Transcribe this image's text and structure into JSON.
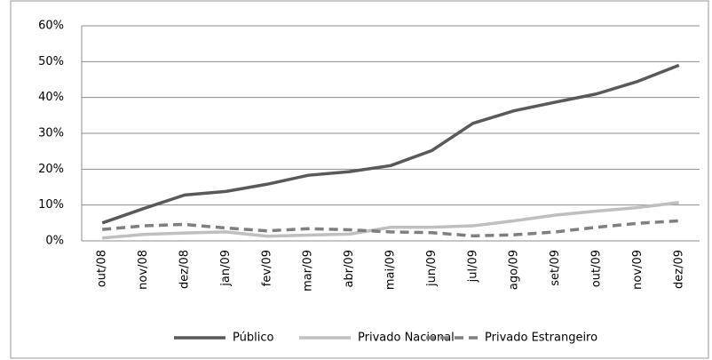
{
  "chart_data": {
    "type": "line",
    "categories": [
      "out/08",
      "nov/08",
      "dez/08",
      "jan/09",
      "fev/09",
      "mar/09",
      "abr/09",
      "mai/09",
      "jun/09",
      "jul/09",
      "ago/09",
      "set/09",
      "out/09",
      "nov/09",
      "dez/09"
    ],
    "series": [
      {
        "name": "Público",
        "color": "#595959",
        "dashed": false,
        "values": [
          5,
          9,
          12.8,
          13.8,
          15.8,
          18.3,
          19.3,
          21,
          25.2,
          32.8,
          36.3,
          38.7,
          41,
          44.5,
          49
        ]
      },
      {
        "name": "Privado Nacional",
        "color": "#bfbfbf",
        "dashed": false,
        "values": [
          0.8,
          1.8,
          2.2,
          2.5,
          1.3,
          1.6,
          1.9,
          3.8,
          3.8,
          4.2,
          5.6,
          7.2,
          8.3,
          9.3,
          10.7
        ]
      },
      {
        "name": "Privado Estrangeiro",
        "color": "#7f7f7f",
        "dashed": true,
        "values": [
          3.2,
          4.2,
          4.6,
          3.6,
          2.8,
          3.4,
          3.1,
          2.5,
          2.3,
          1.4,
          1.7,
          2.5,
          3.8,
          4.9,
          5.6
        ]
      }
    ],
    "ylim": [
      0,
      60
    ],
    "yticks": [
      {
        "value": 0,
        "label": "0%"
      },
      {
        "value": 10,
        "label": "10%"
      },
      {
        "value": 20,
        "label": "20%"
      },
      {
        "value": 30,
        "label": "30%"
      },
      {
        "value": 40,
        "label": "40%"
      },
      {
        "value": 50,
        "label": "50%"
      },
      {
        "value": 60,
        "label": "60%"
      }
    ],
    "grid": true,
    "legend": "bottom"
  }
}
